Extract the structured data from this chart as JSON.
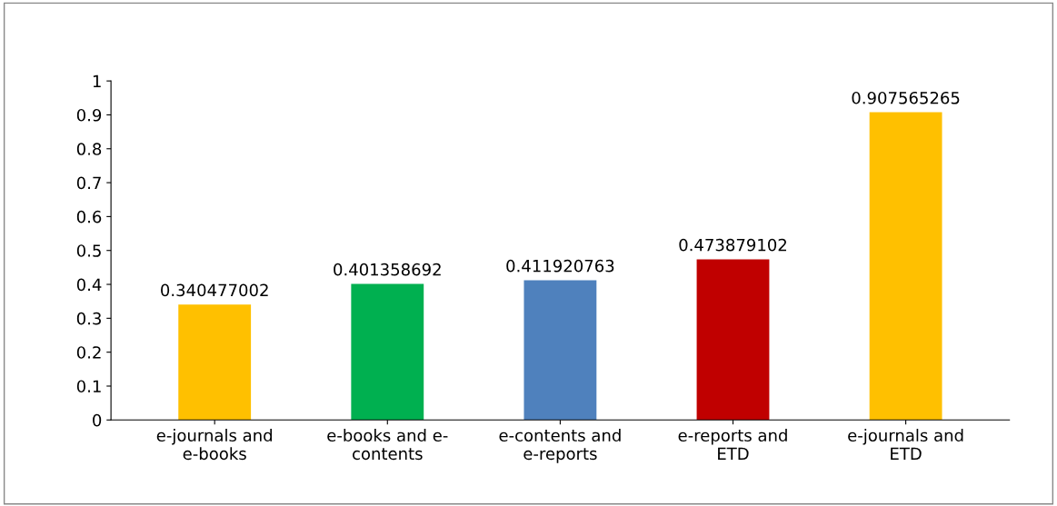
{
  "chart_data": {
    "type": "bar",
    "categories": [
      "e-journals and\ne-books",
      "e-books and e-\ncontents",
      "e-contents and\ne-reports",
      "e-reports and\nETD",
      "e-journals and\nETD"
    ],
    "values": [
      0.340477002,
      0.401358692,
      0.411920763,
      0.473879102,
      0.907565265
    ],
    "colors": [
      "#ffc000",
      "#00b050",
      "#4f81bd",
      "#c00000",
      "#ffc000"
    ],
    "ylim": [
      0,
      1
    ],
    "yticks": [
      0,
      0.1,
      0.2,
      0.3,
      0.4,
      0.5,
      0.6,
      0.7,
      0.8,
      0.9,
      1
    ],
    "data_labels": true,
    "grid": false
  }
}
